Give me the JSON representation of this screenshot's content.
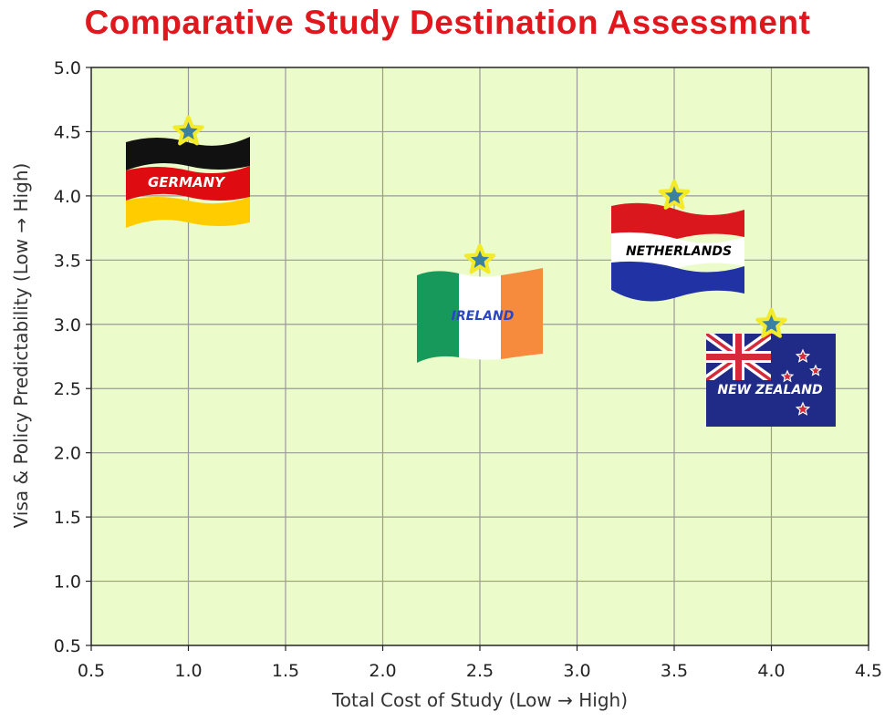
{
  "title": "Comparative Study Destination Assessment",
  "colors": {
    "title": "#e1171e",
    "plot_background": "#ebfbc9",
    "grid": "#9a9a9a",
    "star_fill": "#3b7fa3",
    "star_stroke": "#f3ea2a"
  },
  "chart_data": {
    "type": "scatter",
    "title": "Comparative Study Destination Assessment",
    "xlabel": "Total Cost of Study (Low → High)",
    "ylabel": "Visa & Policy Predictability (Low → High)",
    "xlim": [
      0.5,
      4.5
    ],
    "ylim": [
      0.5,
      5.0
    ],
    "xticks": [
      0.5,
      1.0,
      1.5,
      2.0,
      2.5,
      3.0,
      3.5,
      4.0,
      4.5
    ],
    "xtick_labels": [
      "0.5",
      "1.0",
      "1.5",
      "2.0",
      "2.5",
      "3.0",
      "3.5",
      "4.0",
      "4.5"
    ],
    "yticks": [
      0.5,
      1.0,
      1.5,
      2.0,
      2.5,
      3.0,
      3.5,
      4.0,
      4.5,
      5.0
    ],
    "ytick_labels": [
      "0.5",
      "1.0",
      "1.5",
      "2.0",
      "2.5",
      "3.0",
      "3.5",
      "4.0",
      "4.5",
      "5.0"
    ],
    "grid": true,
    "marker": "star",
    "points": [
      {
        "label": "GERMANY",
        "x": 1.0,
        "y": 4.5,
        "flag": "germany-flag-icon"
      },
      {
        "label": "IRELAND",
        "x": 2.5,
        "y": 3.5,
        "flag": "ireland-flag-icon"
      },
      {
        "label": "NETHERLANDS",
        "x": 3.5,
        "y": 4.0,
        "flag": "netherlands-flag-icon"
      },
      {
        "label": "NEW ZEALAND",
        "x": 4.0,
        "y": 3.0,
        "flag": "new-zealand-flag-icon"
      }
    ]
  }
}
